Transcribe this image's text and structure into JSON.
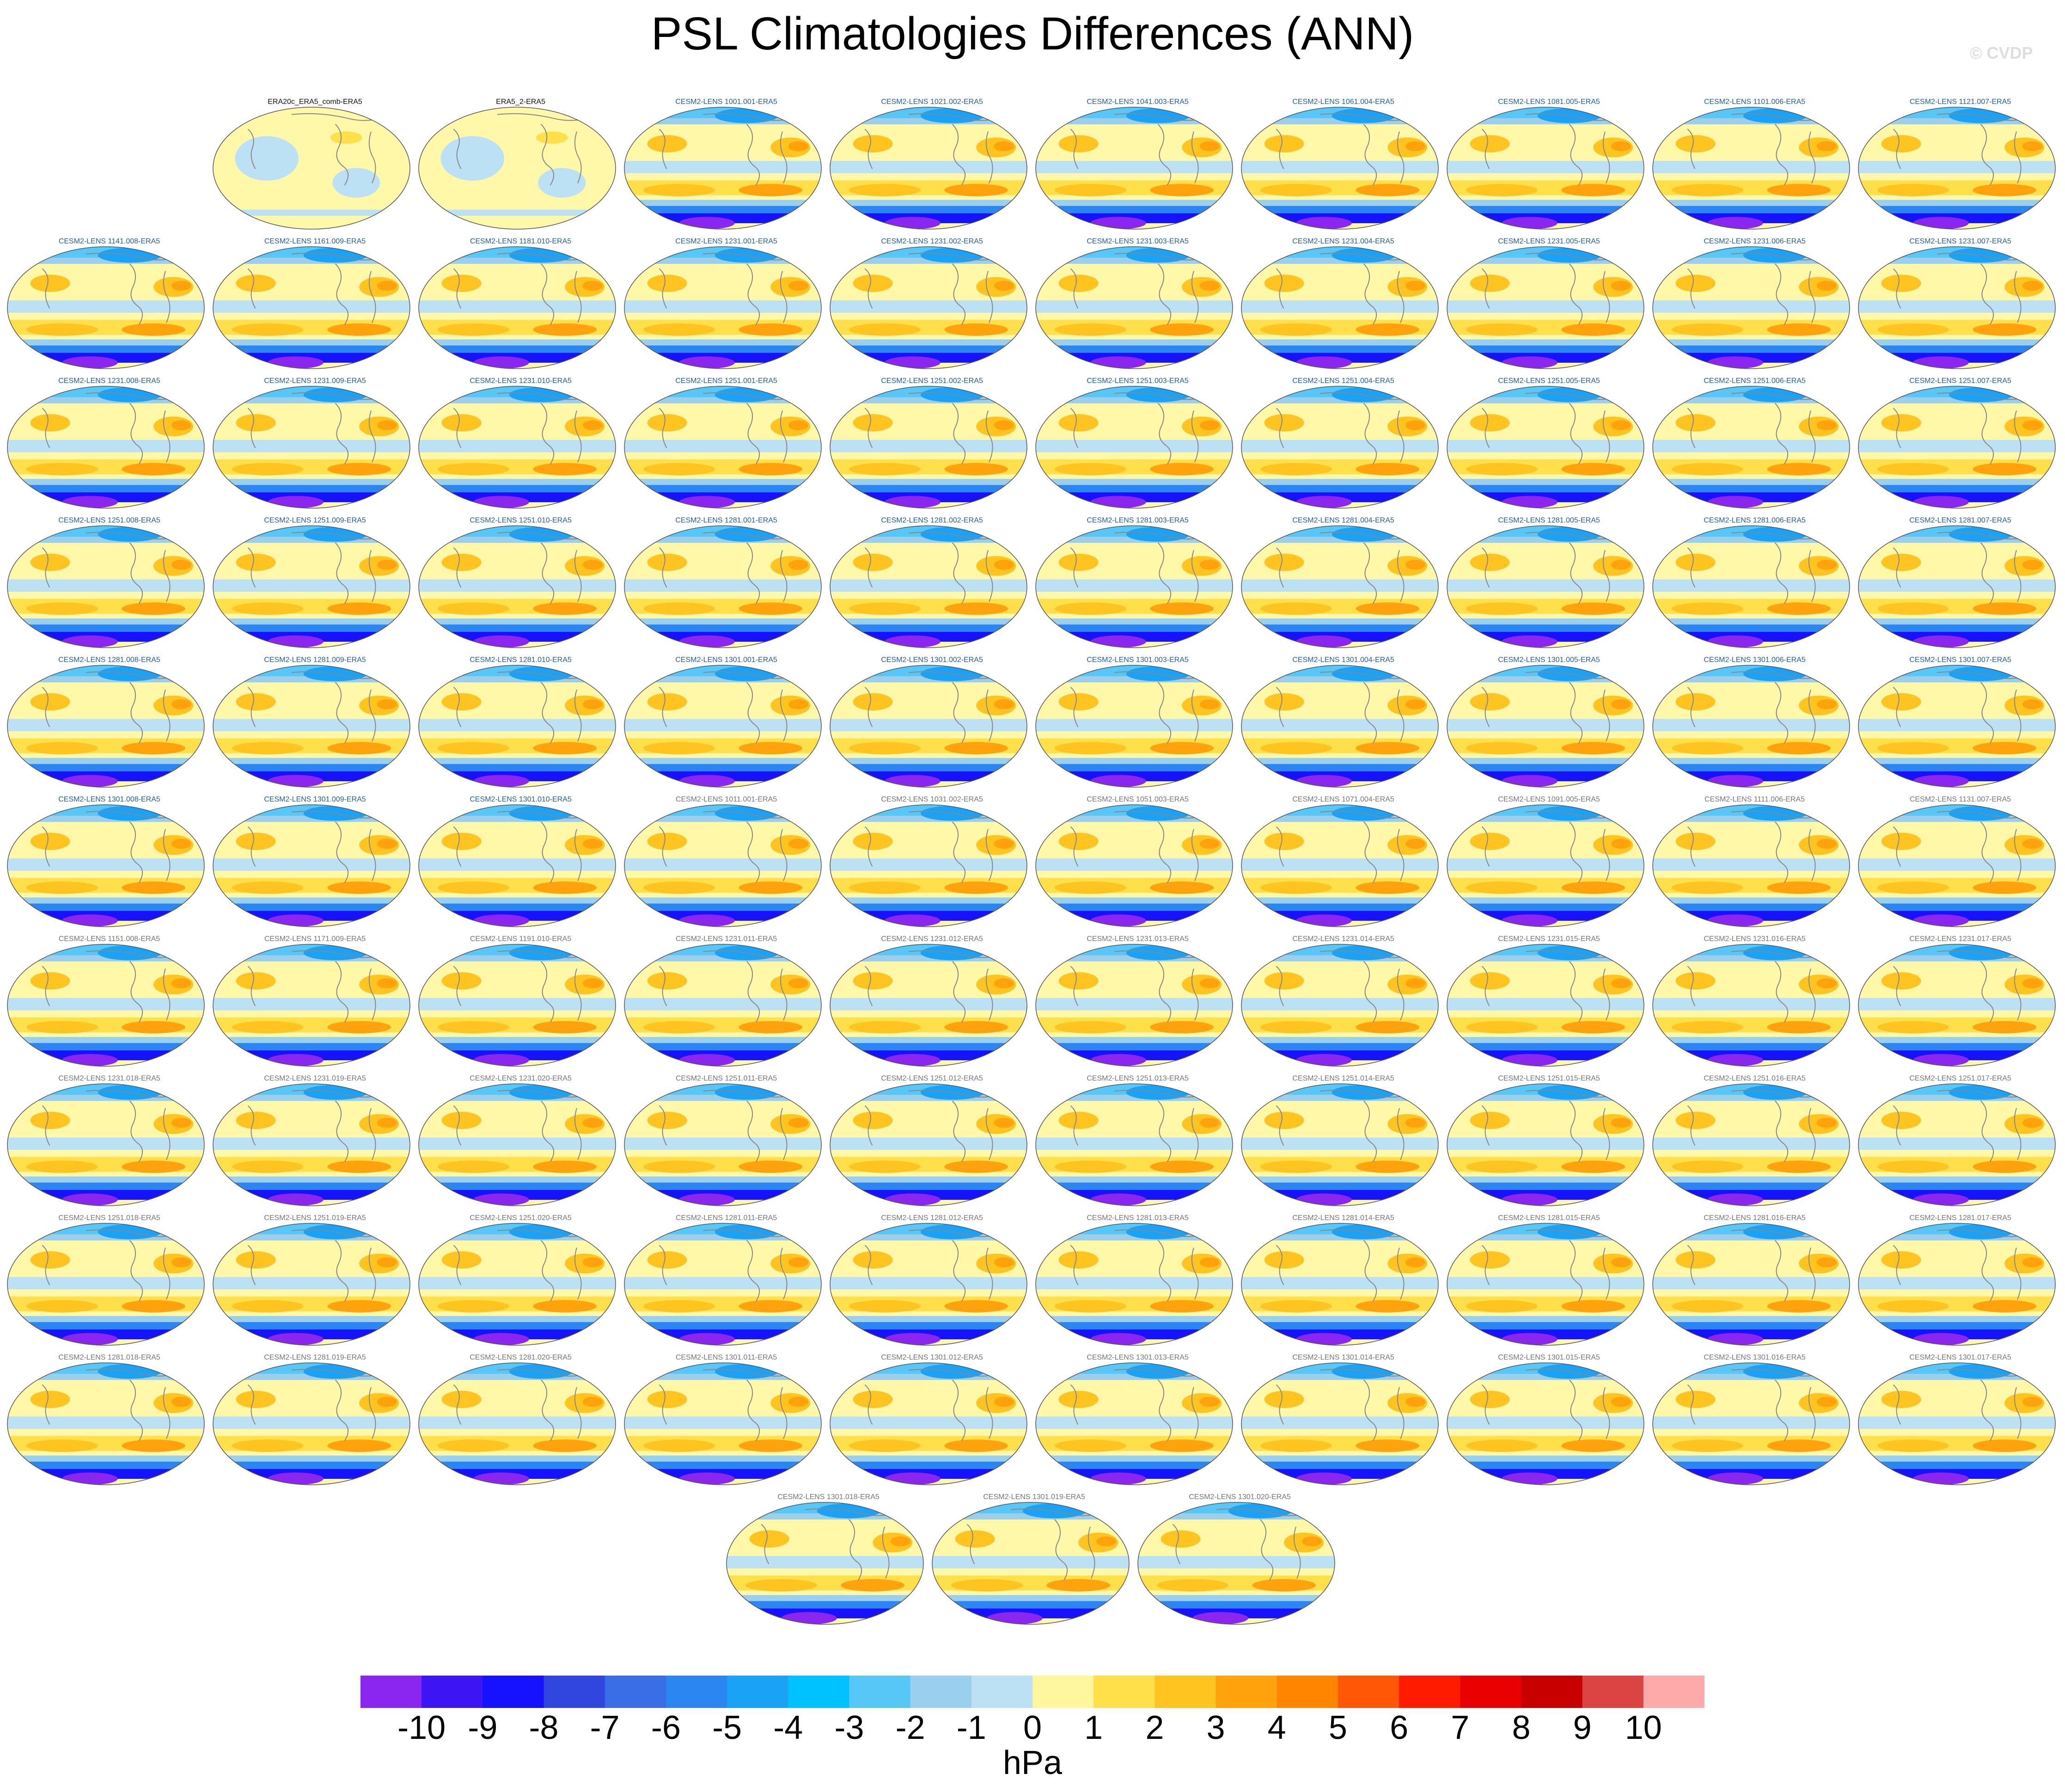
{
  "title": "PSL Climatologies Differences (ANN)",
  "watermark": "© CVDP",
  "colorbar": {
    "units": "hPa",
    "labels": [
      "-10",
      "-9",
      "-8",
      "-7",
      "-6",
      "-5",
      "-4",
      "-3",
      "-2",
      "-1",
      "0",
      "1",
      "2",
      "3",
      "4",
      "5",
      "6",
      "7",
      "8",
      "9",
      "10"
    ],
    "colors": [
      "#8a26ef",
      "#3d14f4",
      "#1611ff",
      "#3146de",
      "#3a6ee6",
      "#2b86f2",
      "#1aa2f6",
      "#00c2ff",
      "#56c7f6",
      "#9acfee",
      "#bde1f4",
      "#fff79e",
      "#ffe04b",
      "#ffc41f",
      "#ffa20b",
      "#ff8500",
      "#ff5706",
      "#ff1b00",
      "#eb0000",
      "#c90000",
      "#dc4444",
      "#ffaaaa"
    ]
  },
  "panels": [
    {
      "label": "ERA20c_ERA5_comb-ERA5",
      "style": "obs"
    },
    {
      "label": "ERA5_2-ERA5",
      "style": "obs"
    },
    {
      "label": "CESM2-LENS 1001.001-ERA5",
      "style": "blue"
    },
    {
      "label": "CESM2-LENS 1021.002-ERA5",
      "style": "blue"
    },
    {
      "label": "CESM2-LENS 1041.003-ERA5",
      "style": "blue"
    },
    {
      "label": "CESM2-LENS 1061.004-ERA5",
      "style": "blue"
    },
    {
      "label": "CESM2-LENS 1081.005-ERA5",
      "style": "blue"
    },
    {
      "label": "CESM2-LENS 1101.006-ERA5",
      "style": "blue"
    },
    {
      "label": "CESM2-LENS 1121.007-ERA5",
      "style": "blue"
    },
    {
      "label": "CESM2-LENS 1141.008-ERA5",
      "style": "blue"
    },
    {
      "label": "CESM2-LENS 1161.009-ERA5",
      "style": "blue"
    },
    {
      "label": "CESM2-LENS 1181.010-ERA5",
      "style": "blue"
    },
    {
      "label": "CESM2-LENS 1231.001-ERA5",
      "style": "blue"
    },
    {
      "label": "CESM2-LENS 1231.002-ERA5",
      "style": "blue"
    },
    {
      "label": "CESM2-LENS 1231.003-ERA5",
      "style": "blue"
    },
    {
      "label": "CESM2-LENS 1231.004-ERA5",
      "style": "blue"
    },
    {
      "label": "CESM2-LENS 1231.005-ERA5",
      "style": "blue"
    },
    {
      "label": "CESM2-LENS 1231.006-ERA5",
      "style": "blue"
    },
    {
      "label": "CESM2-LENS 1231.007-ERA5",
      "style": "blue"
    },
    {
      "label": "CESM2-LENS 1231.008-ERA5",
      "style": "blue"
    },
    {
      "label": "CESM2-LENS 1231.009-ERA5",
      "style": "blue"
    },
    {
      "label": "CESM2-LENS 1231.010-ERA5",
      "style": "blue"
    },
    {
      "label": "CESM2-LENS 1251.001-ERA5",
      "style": "blue"
    },
    {
      "label": "CESM2-LENS 1251.002-ERA5",
      "style": "blue"
    },
    {
      "label": "CESM2-LENS 1251.003-ERA5",
      "style": "blue"
    },
    {
      "label": "CESM2-LENS 1251.004-ERA5",
      "style": "blue"
    },
    {
      "label": "CESM2-LENS 1251.005-ERA5",
      "style": "blue"
    },
    {
      "label": "CESM2-LENS 1251.006-ERA5",
      "style": "blue"
    },
    {
      "label": "CESM2-LENS 1251.007-ERA5",
      "style": "blue"
    },
    {
      "label": "CESM2-LENS 1251.008-ERA5",
      "style": "blue"
    },
    {
      "label": "CESM2-LENS 1251.009-ERA5",
      "style": "blue"
    },
    {
      "label": "CESM2-LENS 1251.010-ERA5",
      "style": "blue"
    },
    {
      "label": "CESM2-LENS 1281.001-ERA5",
      "style": "blue"
    },
    {
      "label": "CESM2-LENS 1281.002-ERA5",
      "style": "blue"
    },
    {
      "label": "CESM2-LENS 1281.003-ERA5",
      "style": "blue"
    },
    {
      "label": "CESM2-LENS 1281.004-ERA5",
      "style": "blue"
    },
    {
      "label": "CESM2-LENS 1281.005-ERA5",
      "style": "blue"
    },
    {
      "label": "CESM2-LENS 1281.006-ERA5",
      "style": "blue"
    },
    {
      "label": "CESM2-LENS 1281.007-ERA5",
      "style": "blue"
    },
    {
      "label": "CESM2-LENS 1281.008-ERA5",
      "style": "blue"
    },
    {
      "label": "CESM2-LENS 1281.009-ERA5",
      "style": "blue"
    },
    {
      "label": "CESM2-LENS 1281.010-ERA5",
      "style": "blue"
    },
    {
      "label": "CESM2-LENS 1301.001-ERA5",
      "style": "blue"
    },
    {
      "label": "CESM2-LENS 1301.002-ERA5",
      "style": "blue"
    },
    {
      "label": "CESM2-LENS 1301.003-ERA5",
      "style": "blue"
    },
    {
      "label": "CESM2-LENS 1301.004-ERA5",
      "style": "blue"
    },
    {
      "label": "CESM2-LENS 1301.005-ERA5",
      "style": "blue"
    },
    {
      "label": "CESM2-LENS 1301.006-ERA5",
      "style": "blue"
    },
    {
      "label": "CESM2-LENS 1301.007-ERA5",
      "style": "blue"
    },
    {
      "label": "CESM2-LENS 1301.008-ERA5",
      "style": "blue"
    },
    {
      "label": "CESM2-LENS 1301.009-ERA5",
      "style": "blue"
    },
    {
      "label": "CESM2-LENS 1301.010-ERA5",
      "style": "blue"
    },
    {
      "label": "CESM2-LENS 1011.001-ERA5",
      "style": "gray"
    },
    {
      "label": "CESM2-LENS 1031.002-ERA5",
      "style": "gray"
    },
    {
      "label": "CESM2-LENS 1051.003-ERA5",
      "style": "gray"
    },
    {
      "label": "CESM2-LENS 1071.004-ERA5",
      "style": "gray"
    },
    {
      "label": "CESM2-LENS 1091.005-ERA5",
      "style": "gray"
    },
    {
      "label": "CESM2-LENS 1111.006-ERA5",
      "style": "gray"
    },
    {
      "label": "CESM2-LENS 1131.007-ERA5",
      "style": "gray"
    },
    {
      "label": "CESM2-LENS 1151.008-ERA5",
      "style": "gray"
    },
    {
      "label": "CESM2-LENS 1171.009-ERA5",
      "style": "gray"
    },
    {
      "label": "CESM2-LENS 1191.010-ERA5",
      "style": "gray"
    },
    {
      "label": "CESM2-LENS 1231.011-ERA5",
      "style": "gray"
    },
    {
      "label": "CESM2-LENS 1231.012-ERA5",
      "style": "gray"
    },
    {
      "label": "CESM2-LENS 1231.013-ERA5",
      "style": "gray"
    },
    {
      "label": "CESM2-LENS 1231.014-ERA5",
      "style": "gray"
    },
    {
      "label": "CESM2-LENS 1231.015-ERA5",
      "style": "gray"
    },
    {
      "label": "CESM2-LENS 1231.016-ERA5",
      "style": "gray"
    },
    {
      "label": "CESM2-LENS 1231.017-ERA5",
      "style": "gray"
    },
    {
      "label": "CESM2-LENS 1231.018-ERA5",
      "style": "gray"
    },
    {
      "label": "CESM2-LENS 1231.019-ERA5",
      "style": "gray"
    },
    {
      "label": "CESM2-LENS 1231.020-ERA5",
      "style": "gray"
    },
    {
      "label": "CESM2-LENS 1251.011-ERA5",
      "style": "gray"
    },
    {
      "label": "CESM2-LENS 1251.012-ERA5",
      "style": "gray"
    },
    {
      "label": "CESM2-LENS 1251.013-ERA5",
      "style": "gray"
    },
    {
      "label": "CESM2-LENS 1251.014-ERA5",
      "style": "gray"
    },
    {
      "label": "CESM2-LENS 1251.015-ERA5",
      "style": "gray"
    },
    {
      "label": "CESM2-LENS 1251.016-ERA5",
      "style": "gray"
    },
    {
      "label": "CESM2-LENS 1251.017-ERA5",
      "style": "gray"
    },
    {
      "label": "CESM2-LENS 1251.018-ERA5",
      "style": "gray"
    },
    {
      "label": "CESM2-LENS 1251.019-ERA5",
      "style": "gray"
    },
    {
      "label": "CESM2-LENS 1251.020-ERA5",
      "style": "gray"
    },
    {
      "label": "CESM2-LENS 1281.011-ERA5",
      "style": "gray"
    },
    {
      "label": "CESM2-LENS 1281.012-ERA5",
      "style": "gray"
    },
    {
      "label": "CESM2-LENS 1281.013-ERA5",
      "style": "gray"
    },
    {
      "label": "CESM2-LENS 1281.014-ERA5",
      "style": "gray"
    },
    {
      "label": "CESM2-LENS 1281.015-ERA5",
      "style": "gray"
    },
    {
      "label": "CESM2-LENS 1281.016-ERA5",
      "style": "gray"
    },
    {
      "label": "CESM2-LENS 1281.017-ERA5",
      "style": "gray"
    },
    {
      "label": "CESM2-LENS 1281.018-ERA5",
      "style": "gray"
    },
    {
      "label": "CESM2-LENS 1281.019-ERA5",
      "style": "gray"
    },
    {
      "label": "CESM2-LENS 1281.020-ERA5",
      "style": "gray"
    },
    {
      "label": "CESM2-LENS 1301.011-ERA5",
      "style": "gray"
    },
    {
      "label": "CESM2-LENS 1301.012-ERA5",
      "style": "gray"
    },
    {
      "label": "CESM2-LENS 1301.013-ERA5",
      "style": "gray"
    },
    {
      "label": "CESM2-LENS 1301.014-ERA5",
      "style": "gray"
    },
    {
      "label": "CESM2-LENS 1301.015-ERA5",
      "style": "gray"
    },
    {
      "label": "CESM2-LENS 1301.016-ERA5",
      "style": "gray"
    },
    {
      "label": "CESM2-LENS 1301.017-ERA5",
      "style": "gray"
    },
    {
      "label": "CESM2-LENS 1301.018-ERA5",
      "style": "gray"
    },
    {
      "label": "CESM2-LENS 1301.019-ERA5",
      "style": "gray"
    },
    {
      "label": "CESM2-LENS 1301.020-ERA5",
      "style": "gray"
    }
  ]
}
